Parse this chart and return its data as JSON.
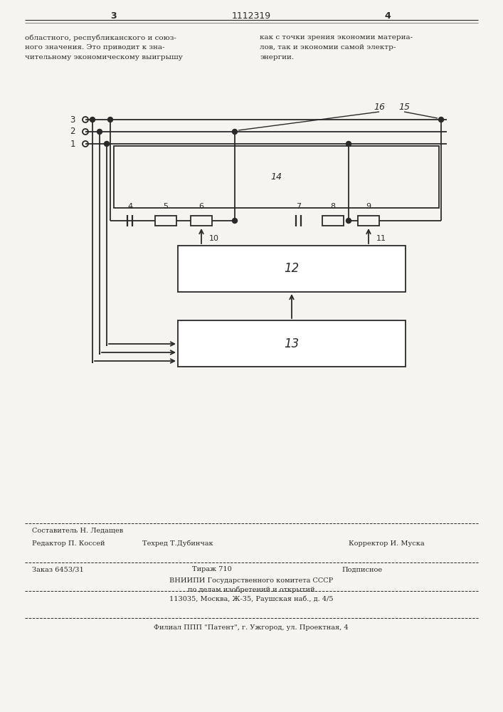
{
  "bg_color": "#f5f4f0",
  "line_color": "#2a2a2a",
  "page_number_left": "3",
  "page_number_center": "1112319",
  "page_number_right": "4",
  "text_left": "областного, республиканского и союз-\nного значения. Это приводит к зна-\nчительному экономическому выигрышу",
  "text_right": "как с точки зрения экономии материа-\nлов, так и экономии самой электр-\nэнергии.",
  "footer_line1_col1": "Редактор П. Коссей",
  "footer_line1_col2_row1": "Составитель Н. Ледащев",
  "footer_line1_col2_row2": "Техред Т.Дубинчак",
  "footer_line1_col3": "Корректор И. Муска",
  "footer_line2_col1": "Заказ 6453/31",
  "footer_line2_col2": "Тираж 710",
  "footer_line2_col3": "Подписное",
  "footer_line3": "ВНИИПИ Государственного комитета СССР",
  "footer_line4": "по делам изобретений и открытий",
  "footer_line5": "113035, Москва, Ж-35, Раушская наб., д. 4/5",
  "footer_line6": "Филиал ППП \"Патент\", г. Ужгород, ул. Проектная, 4"
}
